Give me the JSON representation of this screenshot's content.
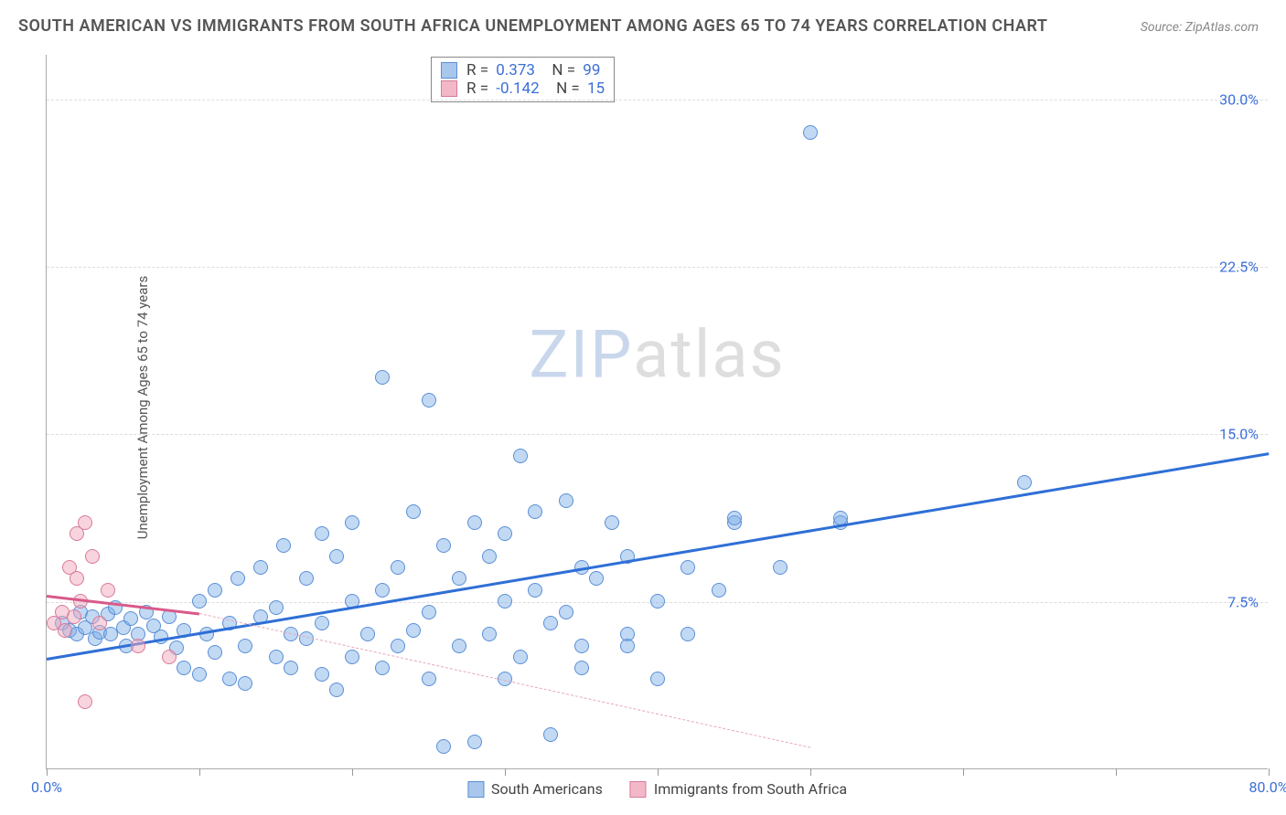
{
  "title": "SOUTH AMERICAN VS IMMIGRANTS FROM SOUTH AFRICA UNEMPLOYMENT AMONG AGES 65 TO 74 YEARS CORRELATION CHART",
  "source": "Source: ZipAtlas.com",
  "ylabel": "Unemployment Among Ages 65 to 74 years",
  "watermark": {
    "prefix": "ZIP",
    "suffix": "atlas"
  },
  "chart": {
    "type": "scatter",
    "xlim": [
      0,
      80
    ],
    "ylim": [
      0,
      32
    ],
    "xticks": [
      0,
      10,
      20,
      30,
      40,
      50,
      60,
      70,
      80
    ],
    "xtick_labels": {
      "0": "0.0%",
      "80": "80.0%"
    },
    "yticks": [
      7.5,
      15.0,
      22.5,
      30.0
    ],
    "ytick_labels": [
      "7.5%",
      "15.0%",
      "22.5%",
      "30.0%"
    ],
    "grid_color": "#dddddd",
    "background_color": "#ffffff",
    "axis_color": "#aaaaaa",
    "marker_radius": 8,
    "marker_stroke_width": 1,
    "series": [
      {
        "name": "South Americans",
        "fill": "rgba(120,170,230,0.45)",
        "stroke": "#5a8fd6",
        "swatch_fill": "#a9c7ec",
        "swatch_stroke": "#5a8fd6",
        "R": "0.373",
        "N": "99",
        "trend": {
          "x1": 0,
          "y1": 5.0,
          "x2": 80,
          "y2": 14.2,
          "color": "#2f6fd6",
          "width": 3,
          "style": "solid"
        },
        "points": [
          [
            1,
            6.5
          ],
          [
            1.5,
            6.2
          ],
          [
            2,
            6.0
          ],
          [
            2.2,
            7.0
          ],
          [
            2.5,
            6.3
          ],
          [
            3,
            6.8
          ],
          [
            3.2,
            5.8
          ],
          [
            3.5,
            6.1
          ],
          [
            4,
            6.9
          ],
          [
            4.2,
            6.0
          ],
          [
            4.5,
            7.2
          ],
          [
            5,
            6.3
          ],
          [
            5.2,
            5.5
          ],
          [
            5.5,
            6.7
          ],
          [
            6,
            6.0
          ],
          [
            6.5,
            7.0
          ],
          [
            7,
            6.4
          ],
          [
            7.5,
            5.9
          ],
          [
            8,
            6.8
          ],
          [
            8.5,
            5.4
          ],
          [
            9,
            4.5
          ],
          [
            9,
            6.2
          ],
          [
            10,
            7.5
          ],
          [
            10,
            4.2
          ],
          [
            10.5,
            6.0
          ],
          [
            11,
            8.0
          ],
          [
            11,
            5.2
          ],
          [
            12,
            6.5
          ],
          [
            12,
            4.0
          ],
          [
            12.5,
            8.5
          ],
          [
            13,
            5.5
          ],
          [
            13,
            3.8
          ],
          [
            14,
            6.8
          ],
          [
            14,
            9.0
          ],
          [
            15,
            5.0
          ],
          [
            15,
            7.2
          ],
          [
            15.5,
            10.0
          ],
          [
            16,
            4.5
          ],
          [
            16,
            6.0
          ],
          [
            17,
            8.5
          ],
          [
            17,
            5.8
          ],
          [
            18,
            10.5
          ],
          [
            18,
            4.2
          ],
          [
            18,
            6.5
          ],
          [
            19,
            9.5
          ],
          [
            19,
            3.5
          ],
          [
            20,
            11.0
          ],
          [
            20,
            5.0
          ],
          [
            20,
            7.5
          ],
          [
            21,
            6.0
          ],
          [
            22,
            17.5
          ],
          [
            22,
            4.5
          ],
          [
            22,
            8.0
          ],
          [
            23,
            9.0
          ],
          [
            23,
            5.5
          ],
          [
            24,
            11.5
          ],
          [
            24,
            6.2
          ],
          [
            25,
            16.5
          ],
          [
            25,
            4.0
          ],
          [
            25,
            7.0
          ],
          [
            26,
            10.0
          ],
          [
            26,
            1.0
          ],
          [
            27,
            5.5
          ],
          [
            27,
            8.5
          ],
          [
            28,
            11.0
          ],
          [
            28,
            1.2
          ],
          [
            29,
            6.0
          ],
          [
            29,
            9.5
          ],
          [
            30,
            7.5
          ],
          [
            30,
            4.0
          ],
          [
            31,
            14.0
          ],
          [
            31,
            5.0
          ],
          [
            32,
            8.0
          ],
          [
            32,
            11.5
          ],
          [
            33,
            6.5
          ],
          [
            33,
            1.5
          ],
          [
            34,
            12.0
          ],
          [
            34,
            7.0
          ],
          [
            35,
            9.0
          ],
          [
            35,
            4.5
          ],
          [
            36,
            8.5
          ],
          [
            37,
            11.0
          ],
          [
            38,
            6.0
          ],
          [
            38,
            9.5
          ],
          [
            40,
            4.0
          ],
          [
            40,
            7.5
          ],
          [
            42,
            9.0
          ],
          [
            44,
            8.0
          ],
          [
            45,
            11.0
          ],
          [
            45,
            11.2
          ],
          [
            48,
            9.0
          ],
          [
            52,
            11.0
          ],
          [
            52,
            11.2
          ],
          [
            50,
            28.5
          ],
          [
            64,
            12.8
          ],
          [
            38,
            5.5
          ],
          [
            42,
            6.0
          ],
          [
            30,
            10.5
          ],
          [
            35,
            5.5
          ]
        ]
      },
      {
        "name": "Immigrants from South Africa",
        "fill": "rgba(240,170,190,0.5)",
        "stroke": "#d97a9a",
        "swatch_fill": "#f2b8c8",
        "swatch_stroke": "#d97a9a",
        "R": "-0.142",
        "N": "15",
        "trend_solid": {
          "x1": 0,
          "y1": 7.8,
          "x2": 10,
          "y2": 7.0,
          "color": "#d95a8a",
          "width": 3,
          "style": "solid"
        },
        "trend": {
          "x1": 10,
          "y1": 7.0,
          "x2": 50,
          "y2": 1.0,
          "color": "#e8a8b8",
          "width": 1,
          "style": "dashed"
        },
        "points": [
          [
            0.5,
            6.5
          ],
          [
            1,
            7.0
          ],
          [
            1.2,
            6.2
          ],
          [
            1.5,
            9.0
          ],
          [
            1.8,
            6.8
          ],
          [
            2,
            10.5
          ],
          [
            2,
            8.5
          ],
          [
            2.2,
            7.5
          ],
          [
            2.5,
            11.0
          ],
          [
            2.5,
            3.0
          ],
          [
            3,
            9.5
          ],
          [
            3.5,
            6.5
          ],
          [
            4,
            8.0
          ],
          [
            6,
            5.5
          ],
          [
            8,
            5.0
          ]
        ]
      }
    ],
    "bottom_legend": [
      {
        "label": "South Americans",
        "fill": "#a9c7ec",
        "stroke": "#5a8fd6"
      },
      {
        "label": "Immigrants from South Africa",
        "fill": "#f2b8c8",
        "stroke": "#d97a9a"
      }
    ]
  }
}
